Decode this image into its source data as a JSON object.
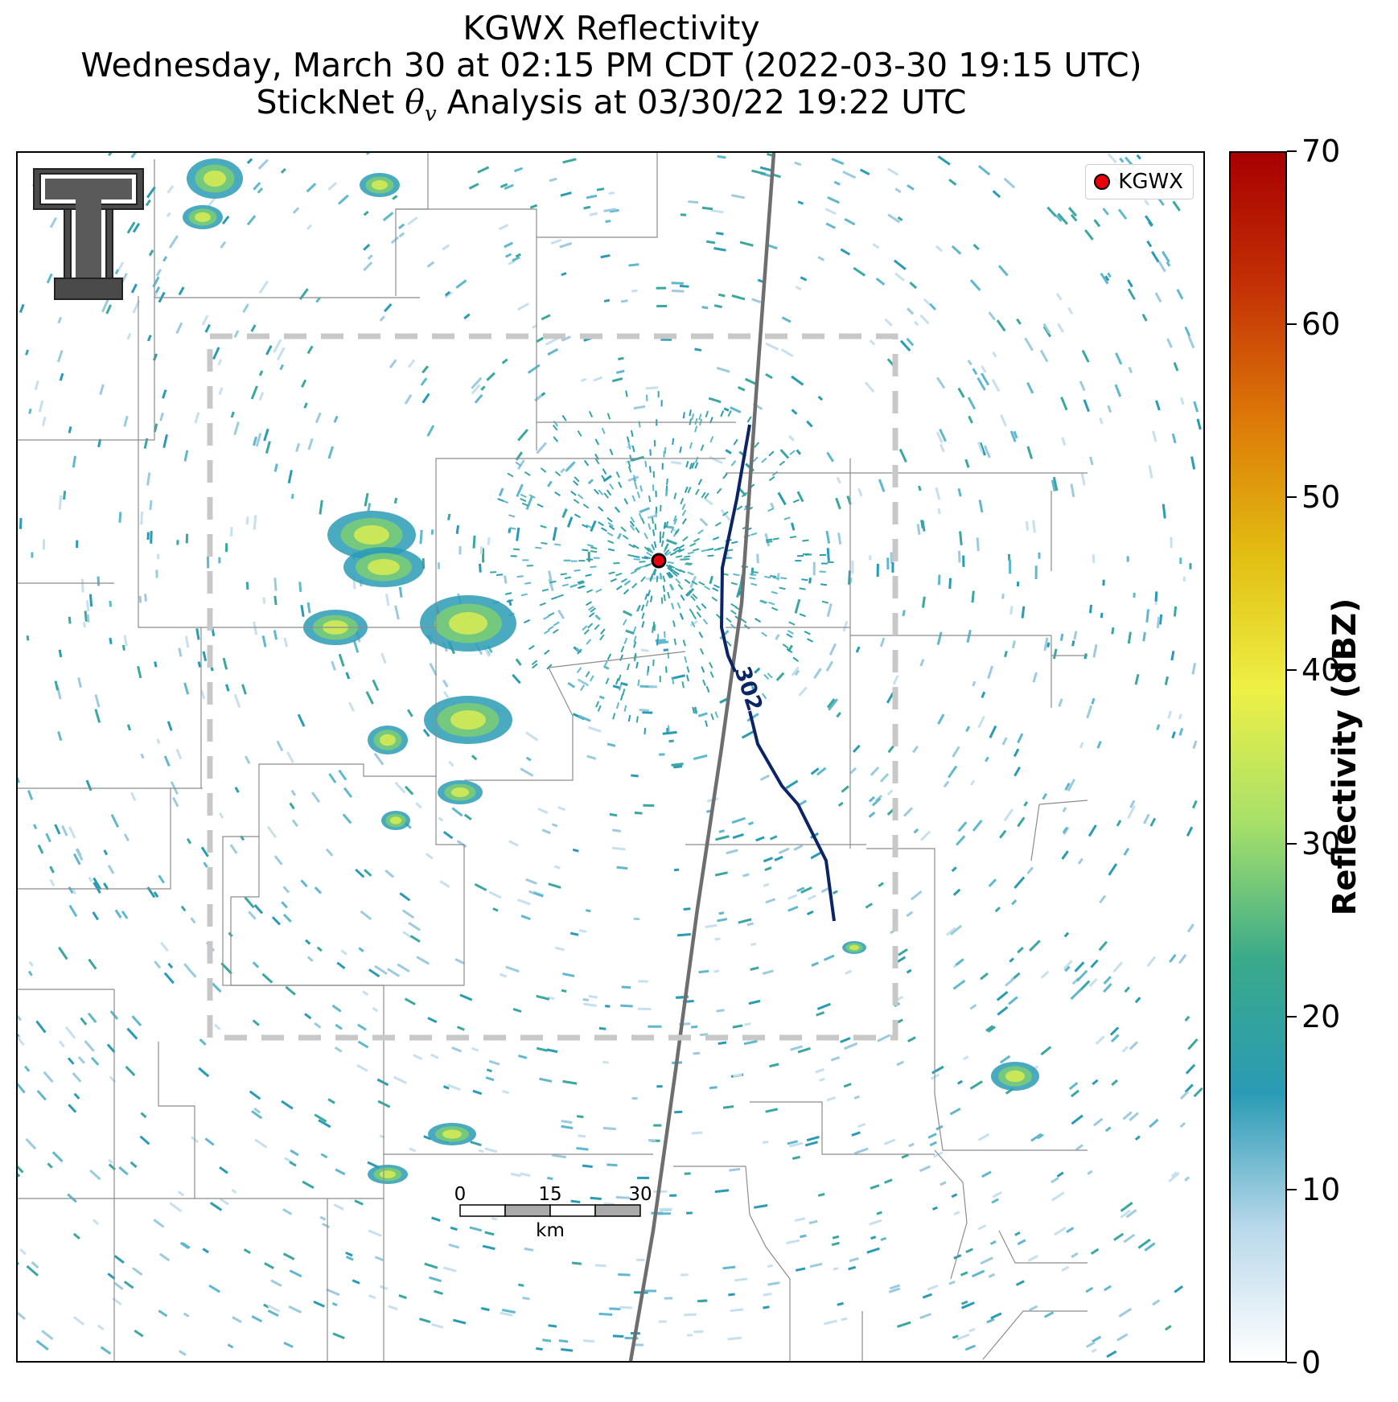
{
  "title": {
    "line1": "KGWX Reflectivity",
    "line2": "Wednesday, March 30 at 02:15 PM CDT (2022-03-30 19:15 UTC)",
    "line3_prefix": "StickNet ",
    "line3_symbol": "θ",
    "line3_subscript": "v",
    "line3_suffix": " Analysis at 03/30/22 19:22 UTC"
  },
  "legend": {
    "label": "KGWX",
    "marker_color": "#e8000b"
  },
  "contour": {
    "label": "302",
    "color": "#0b2466"
  },
  "scale_bar": {
    "ticks": [
      "0",
      "15",
      "30"
    ],
    "unit": "km"
  },
  "colorbar": {
    "title": "Reflectivity (dBZ)",
    "min": 0,
    "max": 70,
    "ticks": [
      "70",
      "60",
      "50",
      "40",
      "30",
      "20",
      "10",
      "0"
    ],
    "colors": [
      "#ffffff",
      "#b8d8ea",
      "#2a9bb5",
      "#3aaa8a",
      "#a6e06a",
      "#eef046",
      "#e2be12",
      "#dd7a08",
      "#c43106",
      "#a80000"
    ]
  },
  "colors": {
    "county_lines": "#8c8c8c",
    "state_line": "#6e6e6e",
    "analysis_box": "#c8c8c8"
  },
  "logo": {
    "name": "Texas Tech Double T"
  }
}
